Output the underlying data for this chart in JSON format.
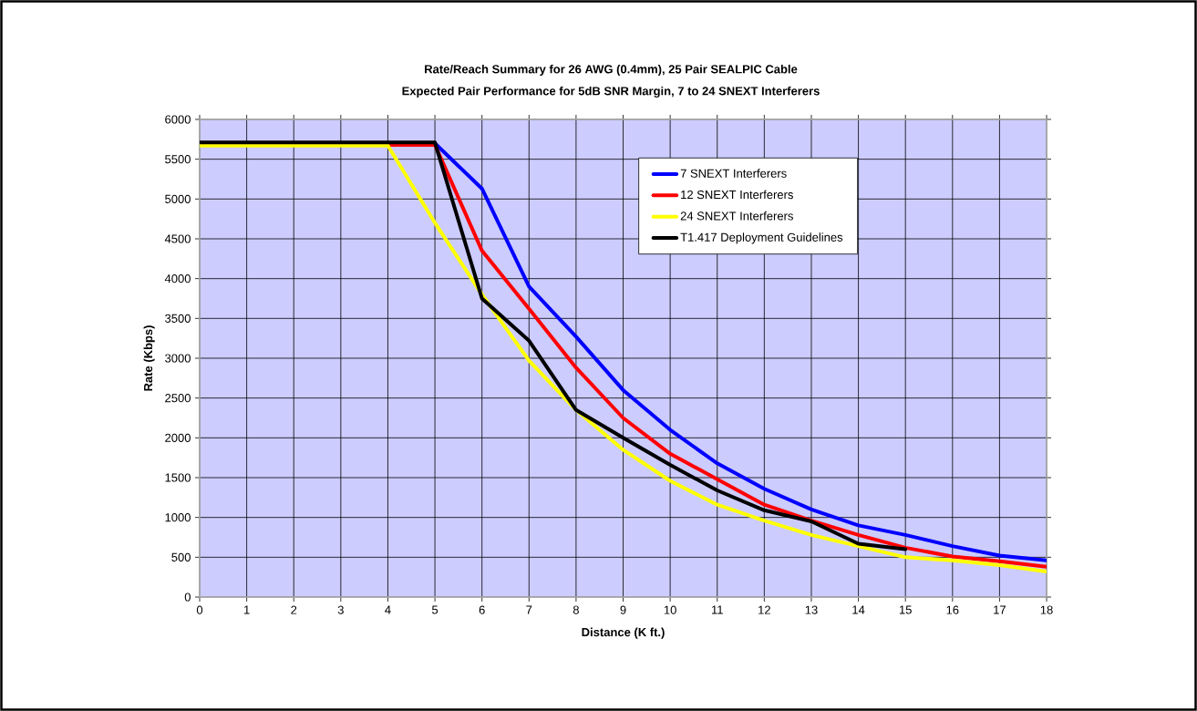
{
  "chart_data": {
    "type": "line",
    "title": "Rate/Reach Summary for 26 AWG (0.4mm), 25 Pair SEALPIC Cable",
    "subtitle": "Expected Pair Performance for 5dB SNR Margin, 7 to 24 SNEXT Interferers",
    "xlabel": "Distance (K ft.)",
    "ylabel": "Rate (Kbps)",
    "x": [
      0,
      1,
      2,
      3,
      4,
      5,
      6,
      7,
      8,
      9,
      10,
      11,
      12,
      13,
      14,
      15,
      16,
      17,
      18
    ],
    "series": [
      {
        "name": "7  SNEXT Interferers",
        "color": "#0000ff",
        "values": [
          null,
          null,
          null,
          null,
          null,
          5700,
          5130,
          3900,
          3270,
          2600,
          2100,
          1680,
          1360,
          1100,
          900,
          780,
          640,
          520,
          460
        ]
      },
      {
        "name": "12 SNEXT Interferers",
        "color": "#ff0000",
        "values": [
          null,
          null,
          null,
          null,
          5680,
          5680,
          4350,
          3620,
          2880,
          2250,
          1800,
          1480,
          1160,
          960,
          780,
          620,
          510,
          450,
          380
        ]
      },
      {
        "name": "24 SNEXT Interferers",
        "color": "#ffff00",
        "values": [
          5670,
          5670,
          5670,
          5670,
          5670,
          4700,
          3800,
          2970,
          2350,
          1850,
          1460,
          1160,
          960,
          780,
          640,
          500,
          460,
          400,
          320
        ]
      },
      {
        "name": "T1.417 Deployment Guidelines",
        "color": "#000000",
        "values": [
          5710,
          5710,
          5710,
          5710,
          5710,
          5710,
          3750,
          3220,
          2350,
          2000,
          1660,
          1340,
          1090,
          950,
          670,
          600,
          null,
          null,
          null
        ]
      }
    ],
    "xlim": [
      0,
      18
    ],
    "ylim": [
      0,
      6000
    ],
    "xticks": [
      0,
      1,
      2,
      3,
      4,
      5,
      6,
      7,
      8,
      9,
      10,
      11,
      12,
      13,
      14,
      15,
      16,
      17,
      18
    ],
    "yticks": [
      0,
      500,
      1000,
      1500,
      2000,
      2500,
      3000,
      3500,
      4000,
      4500,
      5000,
      5500,
      6000
    ],
    "grid": true,
    "legend": "top right",
    "marker": "none",
    "line_style": "solid"
  }
}
